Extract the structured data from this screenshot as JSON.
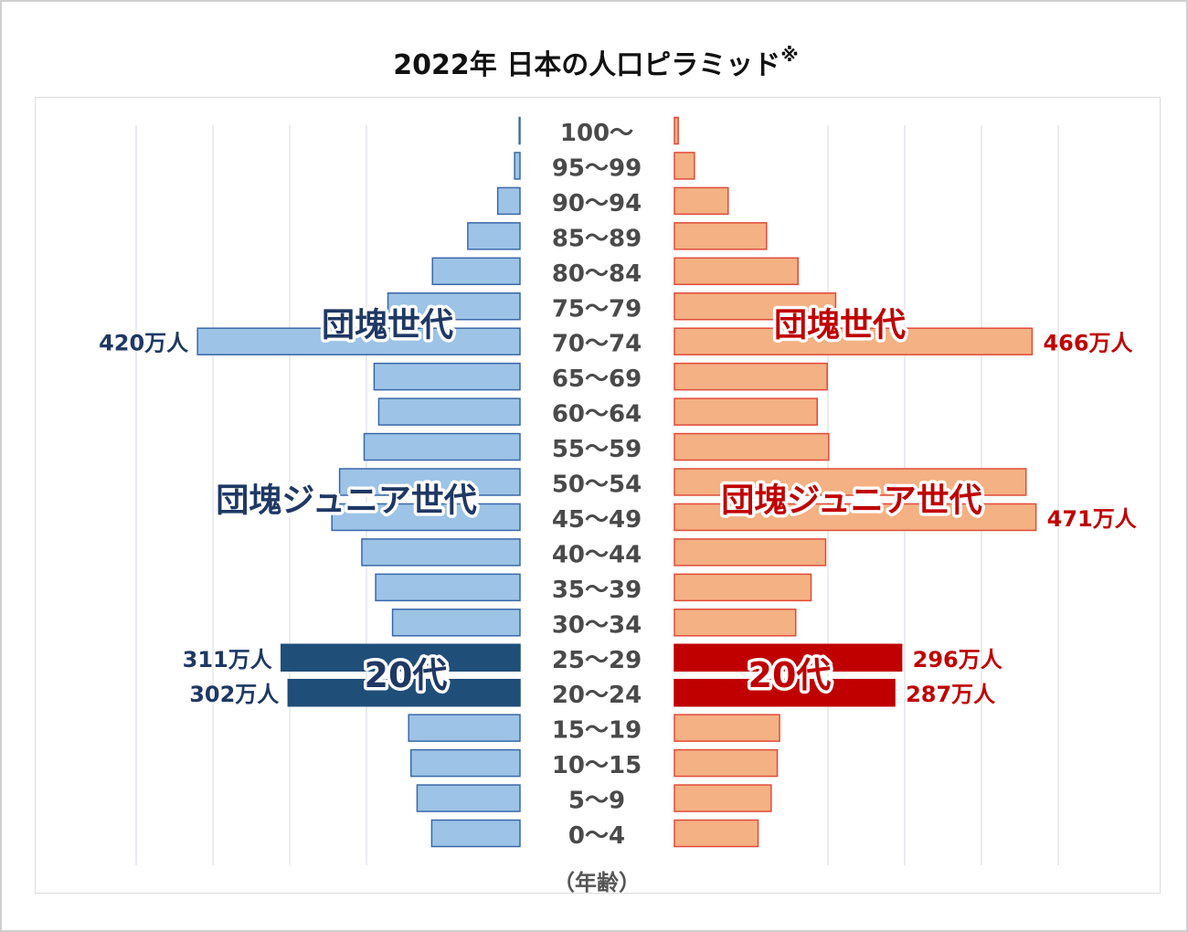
{
  "title": "2022年 日本の人口ピラミッド",
  "title_note": "※",
  "chart_data": {
    "type": "bar",
    "subtype": "population-pyramid",
    "title": "2022年 日本の人口ピラミッド",
    "xlabel": "（年齢）",
    "unit": "万人",
    "x_gridlines": [
      -500,
      -400,
      -300,
      -200,
      200,
      300,
      400,
      500
    ],
    "categories": [
      "100～",
      "95～99",
      "90～94",
      "85～89",
      "80～84",
      "75～79",
      "70～74",
      "65～69",
      "60～64",
      "55～59",
      "50～54",
      "45～49",
      "40～44",
      "35～39",
      "30～34",
      "25～29",
      "20～24",
      "15～19",
      "10～15",
      "5～9",
      "0～4"
    ],
    "series": [
      {
        "side": "left",
        "color": "#9dc3e6",
        "highlight_color": "#1f4e79",
        "highlight_indices": [
          15,
          16
        ],
        "values": [
          1,
          7,
          29,
          68,
          114,
          172,
          420,
          190,
          184,
          203,
          235,
          245,
          206,
          188,
          166,
          311,
          302,
          145,
          142,
          134,
          115
        ]
      },
      {
        "side": "right",
        "color": "#f4b183",
        "highlight_color": "#c00000",
        "highlight_indices": [
          15,
          16
        ],
        "values": [
          5,
          26,
          70,
          120,
          161,
          210,
          466,
          199,
          186,
          201,
          458,
          471,
          197,
          178,
          158,
          296,
          287,
          137,
          134,
          126,
          109
        ]
      }
    ],
    "annotations": [
      {
        "side": "left",
        "text": "420万人",
        "row": 6
      },
      {
        "side": "left",
        "text": "311万人",
        "row": 15
      },
      {
        "side": "left",
        "text": "302万人",
        "row": 16
      },
      {
        "side": "right",
        "text": "466万人",
        "row": 6
      },
      {
        "side": "right",
        "text": "471万人",
        "row": 11
      },
      {
        "side": "right",
        "text": "296万人",
        "row": 15
      },
      {
        "side": "right",
        "text": "287万人",
        "row": 16
      }
    ],
    "group_labels": [
      {
        "side": "left",
        "text": "団塊世代",
        "rows": [
          5,
          6
        ]
      },
      {
        "side": "right",
        "text": "団塊世代",
        "rows": [
          5,
          6
        ]
      },
      {
        "side": "left",
        "text": "団塊ジュニア世代",
        "rows": [
          10,
          11
        ]
      },
      {
        "side": "right",
        "text": "団塊ジュニア世代",
        "rows": [
          10,
          11
        ]
      },
      {
        "side": "left",
        "text": "20代",
        "rows": [
          15,
          16
        ]
      },
      {
        "side": "right",
        "text": "20代",
        "rows": [
          15,
          16
        ]
      }
    ]
  }
}
